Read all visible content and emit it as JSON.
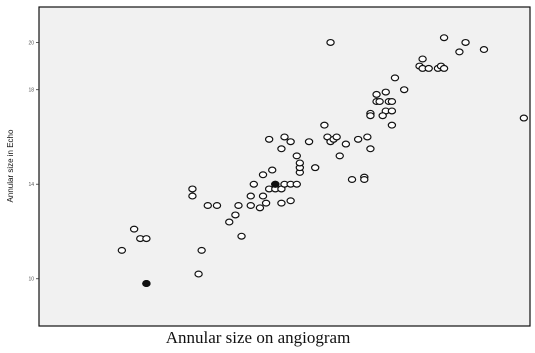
{
  "chart_data": {
    "type": "scatter",
    "xlabel": "Annular size on angiogram",
    "ylabel": "Annular size in Echo",
    "xlim": [
      16.5,
      32.5
    ],
    "ylim": [
      8,
      21.5
    ],
    "yticks": [
      {
        "value": 10,
        "label": "10"
      },
      {
        "value": 14,
        "label": "14"
      },
      {
        "value": 18,
        "label": "18"
      },
      {
        "value": 20,
        "label": "20"
      }
    ],
    "grid": false,
    "points": [
      {
        "x": 19.2,
        "y": 11.2
      },
      {
        "x": 19.6,
        "y": 12.1
      },
      {
        "x": 19.8,
        "y": 11.7
      },
      {
        "x": 20.0,
        "y": 11.7
      },
      {
        "x": 20.0,
        "y": 9.8
      },
      {
        "x": 21.5,
        "y": 13.5
      },
      {
        "x": 21.5,
        "y": 13.8
      },
      {
        "x": 21.8,
        "y": 11.2
      },
      {
        "x": 21.7,
        "y": 10.2
      },
      {
        "x": 22.0,
        "y": 13.1
      },
      {
        "x": 22.3,
        "y": 13.1
      },
      {
        "x": 22.7,
        "y": 12.4
      },
      {
        "x": 22.9,
        "y": 12.7
      },
      {
        "x": 23.0,
        "y": 13.1
      },
      {
        "x": 23.1,
        "y": 11.8
      },
      {
        "x": 23.4,
        "y": 13.1
      },
      {
        "x": 23.4,
        "y": 13.5
      },
      {
        "x": 23.5,
        "y": 14.0
      },
      {
        "x": 23.7,
        "y": 13.0
      },
      {
        "x": 23.8,
        "y": 13.5
      },
      {
        "x": 23.8,
        "y": 14.4
      },
      {
        "x": 23.9,
        "y": 13.2
      },
      {
        "x": 24.0,
        "y": 15.9
      },
      {
        "x": 24.0,
        "y": 13.8
      },
      {
        "x": 24.1,
        "y": 14.6
      },
      {
        "x": 24.2,
        "y": 13.8
      },
      {
        "x": 24.2,
        "y": 14.0
      },
      {
        "x": 24.4,
        "y": 13.2
      },
      {
        "x": 24.4,
        "y": 15.5
      },
      {
        "x": 24.4,
        "y": 13.8
      },
      {
        "x": 24.5,
        "y": 16.0
      },
      {
        "x": 24.5,
        "y": 14.0
      },
      {
        "x": 24.7,
        "y": 15.8
      },
      {
        "x": 24.7,
        "y": 13.3
      },
      {
        "x": 24.9,
        "y": 15.2
      },
      {
        "x": 24.7,
        "y": 14.0
      },
      {
        "x": 24.9,
        "y": 14.0
      },
      {
        "x": 25.0,
        "y": 14.5
      },
      {
        "x": 25.0,
        "y": 14.7
      },
      {
        "x": 25.0,
        "y": 14.9
      },
      {
        "x": 25.3,
        "y": 15.8
      },
      {
        "x": 25.5,
        "y": 14.7
      },
      {
        "x": 25.8,
        "y": 16.5
      },
      {
        "x": 25.9,
        "y": 16.0
      },
      {
        "x": 26.0,
        "y": 15.8
      },
      {
        "x": 26.1,
        "y": 15.9
      },
      {
        "x": 26.0,
        "y": 20.0
      },
      {
        "x": 26.2,
        "y": 16.0
      },
      {
        "x": 26.5,
        "y": 15.7
      },
      {
        "x": 26.3,
        "y": 15.2
      },
      {
        "x": 26.7,
        "y": 14.2
      },
      {
        "x": 26.9,
        "y": 15.9
      },
      {
        "x": 27.1,
        "y": 14.3
      },
      {
        "x": 27.1,
        "y": 14.2
      },
      {
        "x": 27.3,
        "y": 15.5
      },
      {
        "x": 27.2,
        "y": 16.0
      },
      {
        "x": 27.3,
        "y": 17.0
      },
      {
        "x": 27.3,
        "y": 16.9
      },
      {
        "x": 27.5,
        "y": 17.8
      },
      {
        "x": 27.5,
        "y": 17.5
      },
      {
        "x": 27.6,
        "y": 17.5
      },
      {
        "x": 27.8,
        "y": 17.9
      },
      {
        "x": 27.8,
        "y": 17.1
      },
      {
        "x": 27.7,
        "y": 16.9
      },
      {
        "x": 27.9,
        "y": 17.5
      },
      {
        "x": 28.0,
        "y": 17.1
      },
      {
        "x": 28.0,
        "y": 16.5
      },
      {
        "x": 28.0,
        "y": 17.5
      },
      {
        "x": 28.1,
        "y": 18.5
      },
      {
        "x": 28.4,
        "y": 18.0
      },
      {
        "x": 28.9,
        "y": 19.0
      },
      {
        "x": 29.0,
        "y": 18.9
      },
      {
        "x": 29.0,
        "y": 19.3
      },
      {
        "x": 29.2,
        "y": 18.9
      },
      {
        "x": 29.5,
        "y": 18.9
      },
      {
        "x": 29.6,
        "y": 19.0
      },
      {
        "x": 29.7,
        "y": 18.9
      },
      {
        "x": 29.7,
        "y": 20.2
      },
      {
        "x": 30.2,
        "y": 19.6
      },
      {
        "x": 30.4,
        "y": 20.0
      },
      {
        "x": 31.0,
        "y": 19.7
      },
      {
        "x": 32.3,
        "y": 16.8
      }
    ],
    "filled_points": [
      {
        "x": 20.0,
        "y": 9.8
      },
      {
        "x": 24.2,
        "y": 14.0
      }
    ]
  }
}
